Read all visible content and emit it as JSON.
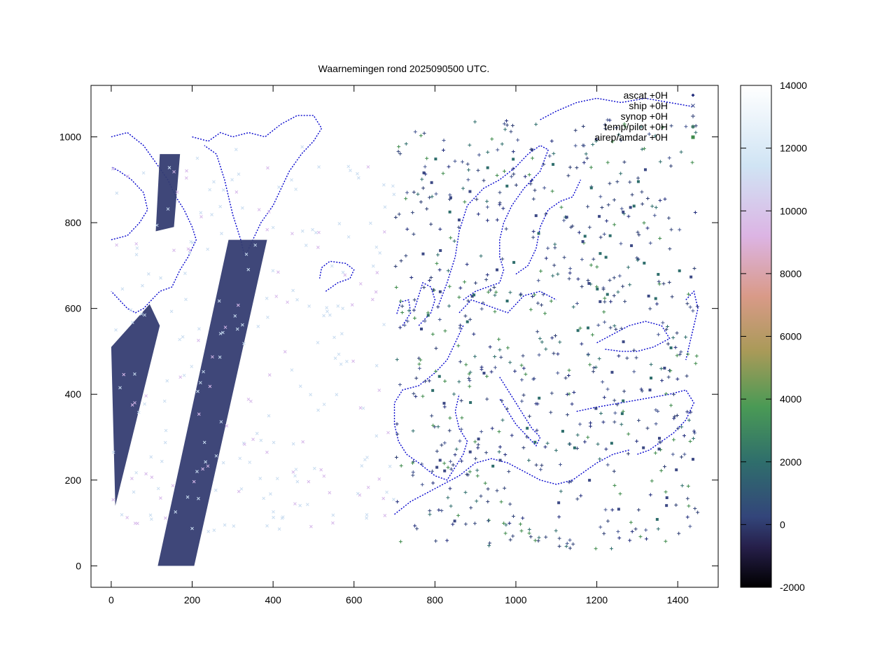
{
  "chart_data": {
    "type": "scatter",
    "title": "Waarnemingen rond 2025090500 UTC.",
    "xlim": [
      -50,
      1500
    ],
    "ylim": [
      -50,
      1120
    ],
    "x_ticks": [
      0,
      200,
      400,
      600,
      800,
      1000,
      1200,
      1400
    ],
    "y_ticks": [
      0,
      200,
      400,
      600,
      800,
      1000
    ],
    "legend_position": "top-right",
    "series": [
      {
        "name": "ascat +0H",
        "marker": "diamond",
        "color": "#1e2a7a"
      },
      {
        "name": "ship +0H",
        "marker": "cross-x",
        "color": "#3a4a8a"
      },
      {
        "name": "synop +0H",
        "marker": "plus",
        "color": "#2a3a70"
      },
      {
        "name": "temp/pilot +0H",
        "marker": "asterisk",
        "color": "#2e6b5a"
      },
      {
        "name": "airep/amdar +0H",
        "marker": "square",
        "color": "#3d8a4a"
      }
    ],
    "swaths": [
      {
        "name": "ascat swath west",
        "polygon": [
          [
            0,
            510
          ],
          [
            95,
            610
          ],
          [
            120,
            560
          ],
          [
            10,
            140
          ]
        ]
      },
      {
        "name": "ascat swath middle",
        "polygon": [
          [
            115,
            0
          ],
          [
            205,
            0
          ],
          [
            385,
            760
          ],
          [
            290,
            760
          ]
        ]
      },
      {
        "name": "ascat swath greenland",
        "polygon": [
          [
            110,
            780
          ],
          [
            155,
            790
          ],
          [
            170,
            960
          ],
          [
            120,
            960
          ]
        ]
      }
    ],
    "colorbar": {
      "min": -2000,
      "max": 14000,
      "ticks": [
        -2000,
        0,
        2000,
        4000,
        6000,
        8000,
        10000,
        12000,
        14000
      ],
      "stops": [
        "#000000",
        "#2b2a55",
        "#33457a",
        "#2f6e6c",
        "#4a9a55",
        "#a99a58",
        "#d99a88",
        "#dcb4e4",
        "#d0e4f4",
        "#ffffff"
      ]
    }
  }
}
